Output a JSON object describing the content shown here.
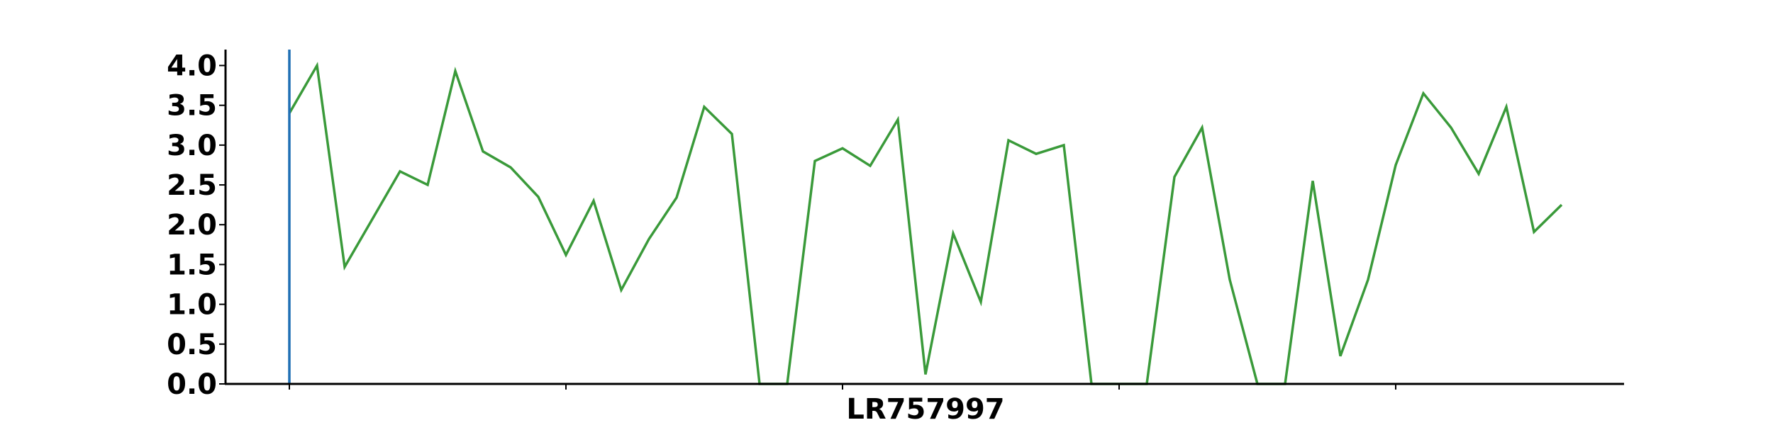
{
  "chart_data": {
    "type": "line",
    "title": "",
    "xlabel": "LR757997",
    "ylabel": "",
    "ylim": [
      0,
      4.2
    ],
    "yticks": [
      "0.0",
      "0.5",
      "1.0",
      "1.5",
      "2.0",
      "2.5",
      "3.0",
      "3.5",
      "4.0"
    ],
    "grid": false,
    "series": [
      {
        "color": "#3a9a3a",
        "values": [
          3.4,
          4.0,
          1.47,
          2.07,
          2.67,
          2.5,
          3.93,
          2.92,
          2.72,
          2.35,
          1.62,
          2.3,
          1.18,
          1.82,
          2.34,
          3.48,
          3.14,
          0.0,
          0.0,
          2.8,
          2.96,
          2.74,
          3.32,
          0.12,
          1.89,
          1.03,
          3.06,
          2.89,
          3.0,
          0.0,
          0.0,
          0.0,
          2.6,
          3.22,
          1.31,
          0.0,
          0.0,
          2.55,
          0.35,
          1.31,
          2.75,
          3.65,
          3.22,
          2.64,
          3.48,
          1.91,
          2.25
        ]
      }
    ],
    "marker_line_color": "#1f6fb4"
  }
}
